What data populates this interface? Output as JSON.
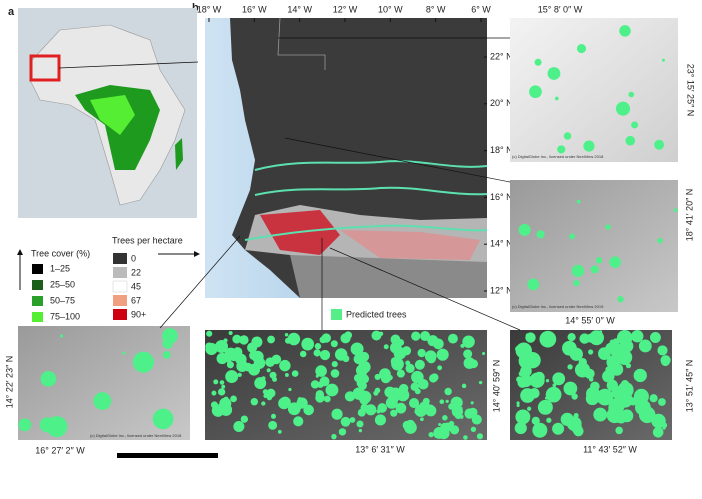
{
  "panel_labels": [
    "a",
    "b"
  ],
  "tree_cover_legend": {
    "title": "Tree cover (%)",
    "items": [
      "1–25",
      "25–50",
      "50–75",
      "75–100"
    ]
  },
  "trees_per_hectare_legend": {
    "title": "Trees per hectare",
    "items": [
      "0",
      "22",
      "45",
      "67",
      "90+"
    ]
  },
  "map": {
    "lon_labels": [
      "18° W",
      "16° W",
      "14° W",
      "12° W",
      "10° W",
      "8° W",
      "6° W"
    ],
    "lat_labels": [
      "22° N",
      "20° N",
      "18° N",
      "16° N",
      "14° N",
      "12° N"
    ]
  },
  "predicted_trees_label": "Predicted trees",
  "insets": [
    {
      "lon": "15° 8′ 0″ W",
      "lat": "23° 15′ 25″ N",
      "credit": "(c) DigitalGlobe Inc., licensed under NextView 2018"
    },
    {
      "lon": "14° 55′ 0″ W",
      "lat": "18° 41′ 20″ N",
      "credit": "(c) DigitalGlobe Inc., licensed under NextView 2019"
    },
    {
      "lon": "16° 27′ 2″ W",
      "lat": "14° 22′ 23″ N",
      "credit": "(c) DigitalGlobe Inc., licensed under NextView 2018"
    },
    {
      "lon": "13° 6′ 31″ W",
      "lat": "14° 40′ 59″ N"
    },
    {
      "lon": "11° 43′ 52″ W",
      "lat": "13° 51′ 45″ N"
    }
  ]
}
